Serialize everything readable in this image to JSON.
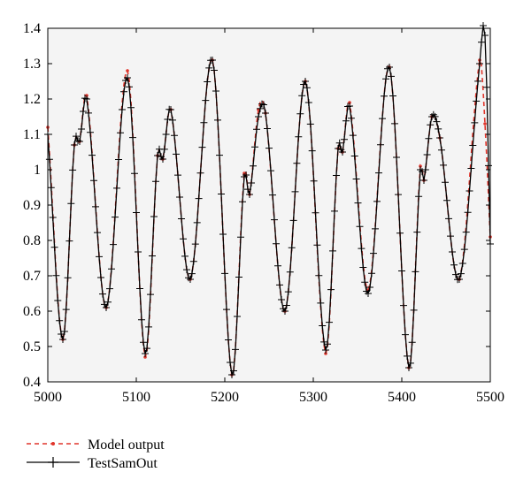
{
  "chart_data": {
    "type": "line",
    "title": "",
    "xlabel": "",
    "ylabel": "",
    "xlim": [
      5000,
      5500
    ],
    "ylim": [
      0.4,
      1.4
    ],
    "xticks": [
      5000,
      5100,
      5200,
      5300,
      5400,
      5500
    ],
    "yticks": [
      0.4,
      0.5,
      0.6,
      0.7,
      0.8,
      0.9,
      1,
      1.1,
      1.2,
      1.3,
      1.4
    ],
    "ytick_labels": [
      "0.4",
      "0.5",
      "0.6",
      "0.7",
      "0.8",
      "0.9",
      "1",
      "1.1",
      "1.2",
      "1.3",
      "1.4"
    ],
    "xtick_labels": [
      "5000",
      "5100",
      "5200",
      "5300",
      "5400",
      "5500"
    ],
    "grid": false,
    "legend_position": "bottom-left, below plot",
    "background": "#f4f4f4",
    "series": [
      {
        "name": "Model output",
        "style": "red dashed with dot markers",
        "color": "#e0352b",
        "x": [
          5000,
          5017,
          5030,
          5036,
          5044,
          5066,
          5090,
          5110,
          5124,
          5130,
          5139,
          5161,
          5186,
          5208,
          5222,
          5228,
          5238,
          5246,
          5268,
          5291,
          5314,
          5328,
          5333,
          5341,
          5362,
          5386,
          5408,
          5421,
          5425,
          5434,
          5443,
          5465,
          5488,
          5494,
          5500
        ],
        "y": [
          1.12,
          0.52,
          1.07,
          1.08,
          1.21,
          0.61,
          1.28,
          0.47,
          1.04,
          1.03,
          1.17,
          0.69,
          1.31,
          0.42,
          0.99,
          0.93,
          1.17,
          1.16,
          0.6,
          1.25,
          0.48,
          1.06,
          1.05,
          1.19,
          0.66,
          1.29,
          0.44,
          1.01,
          0.97,
          1.15,
          1.09,
          0.69,
          1.31,
          1.13,
          0.81
        ]
      },
      {
        "name": "TestSamOut",
        "style": "black solid with plus markers",
        "color": "#000000",
        "x": [
          5000,
          5017,
          5030,
          5036,
          5044,
          5066,
          5090,
          5110,
          5124,
          5130,
          5139,
          5161,
          5186,
          5208,
          5222,
          5228,
          5238,
          5246,
          5268,
          5291,
          5314,
          5328,
          5333,
          5341,
          5362,
          5386,
          5408,
          5421,
          5425,
          5434,
          5443,
          5465,
          5488,
          5494,
          5500
        ],
        "y": [
          1.1,
          0.52,
          1.07,
          1.08,
          1.2,
          0.61,
          1.26,
          0.48,
          1.04,
          1.03,
          1.17,
          0.69,
          1.31,
          0.42,
          0.98,
          0.93,
          1.15,
          1.16,
          0.6,
          1.25,
          0.49,
          1.06,
          1.05,
          1.18,
          0.65,
          1.29,
          0.44,
          1.0,
          0.97,
          1.15,
          1.09,
          0.69,
          1.3,
          1.38,
          0.79
        ]
      }
    ]
  }
}
